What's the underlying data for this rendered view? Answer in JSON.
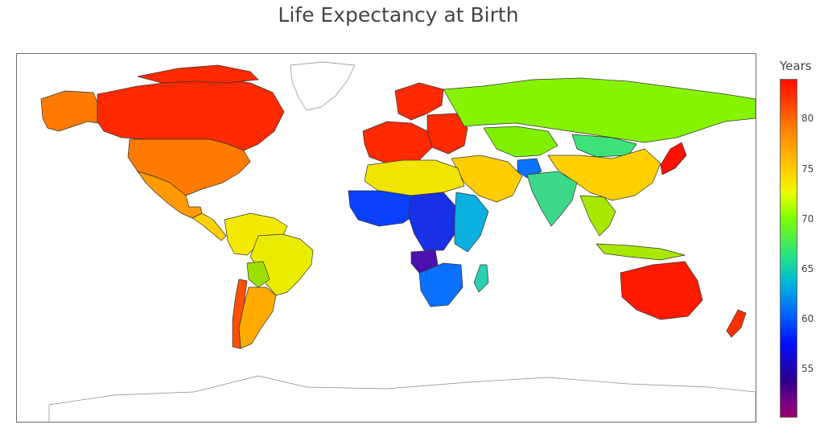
{
  "title": "Life Expectancy at Birth",
  "legend": {
    "title": "Years",
    "ticks": [
      "80",
      "75",
      "70",
      "65",
      "60",
      "55"
    ],
    "scale": "rainbow",
    "colors": {
      "high": "#ff1000",
      "low": "#9a0070"
    }
  },
  "map_regions": [
    {
      "name": "Canada",
      "color": "#ff2a00"
    },
    {
      "name": "Alaska",
      "color": "#ff7a00"
    },
    {
      "name": "United States",
      "color": "#ff7a00"
    },
    {
      "name": "Mexico",
      "color": "#ff9a00"
    },
    {
      "name": "Central America",
      "color": "#ffd000"
    },
    {
      "name": "Northern South America",
      "color": "#f2e800"
    },
    {
      "name": "Brazil",
      "color": "#eaec00"
    },
    {
      "name": "Bolivia",
      "color": "#9be000"
    },
    {
      "name": "Chile",
      "color": "#ff5000"
    },
    {
      "name": "Argentina",
      "color": "#ffaa00"
    },
    {
      "name": "Western Europe",
      "color": "#ff2a00"
    },
    {
      "name": "Scandinavia",
      "color": "#ff2a00"
    },
    {
      "name": "Eastern Europe",
      "color": "#c8f000"
    },
    {
      "name": "Russia",
      "color": "#86f400"
    },
    {
      "name": "Kazakhstan",
      "color": "#7ff000"
    },
    {
      "name": "China",
      "color": "#ffd000"
    },
    {
      "name": "Mongolia",
      "color": "#3de27a"
    },
    {
      "name": "India",
      "color": "#3cd88a"
    },
    {
      "name": "Middle East",
      "color": "#ffcc00"
    },
    {
      "name": "Afghanistan",
      "color": "#0a72ff"
    },
    {
      "name": "Southeast Asia",
      "color": "#a8e800"
    },
    {
      "name": "Japan",
      "color": "#ff1000"
    },
    {
      "name": "North Africa",
      "color": "#f0e400"
    },
    {
      "name": "West Africa",
      "color": "#0a40ff"
    },
    {
      "name": "Central Africa",
      "color": "#1830e6"
    },
    {
      "name": "East Africa",
      "color": "#0ab0e0"
    },
    {
      "name": "Southern Africa",
      "color": "#0a70ff"
    },
    {
      "name": "Madagascar",
      "color": "#2ad0b0"
    },
    {
      "name": "Angola",
      "color": "#4a10b0"
    },
    {
      "name": "Australia",
      "color": "#ff1a00"
    },
    {
      "name": "New Zealand",
      "color": "#ff3000"
    },
    {
      "name": "Greenland",
      "color": "#ffffff"
    },
    {
      "name": "Antarctica",
      "color": "#ffffff"
    }
  ]
}
